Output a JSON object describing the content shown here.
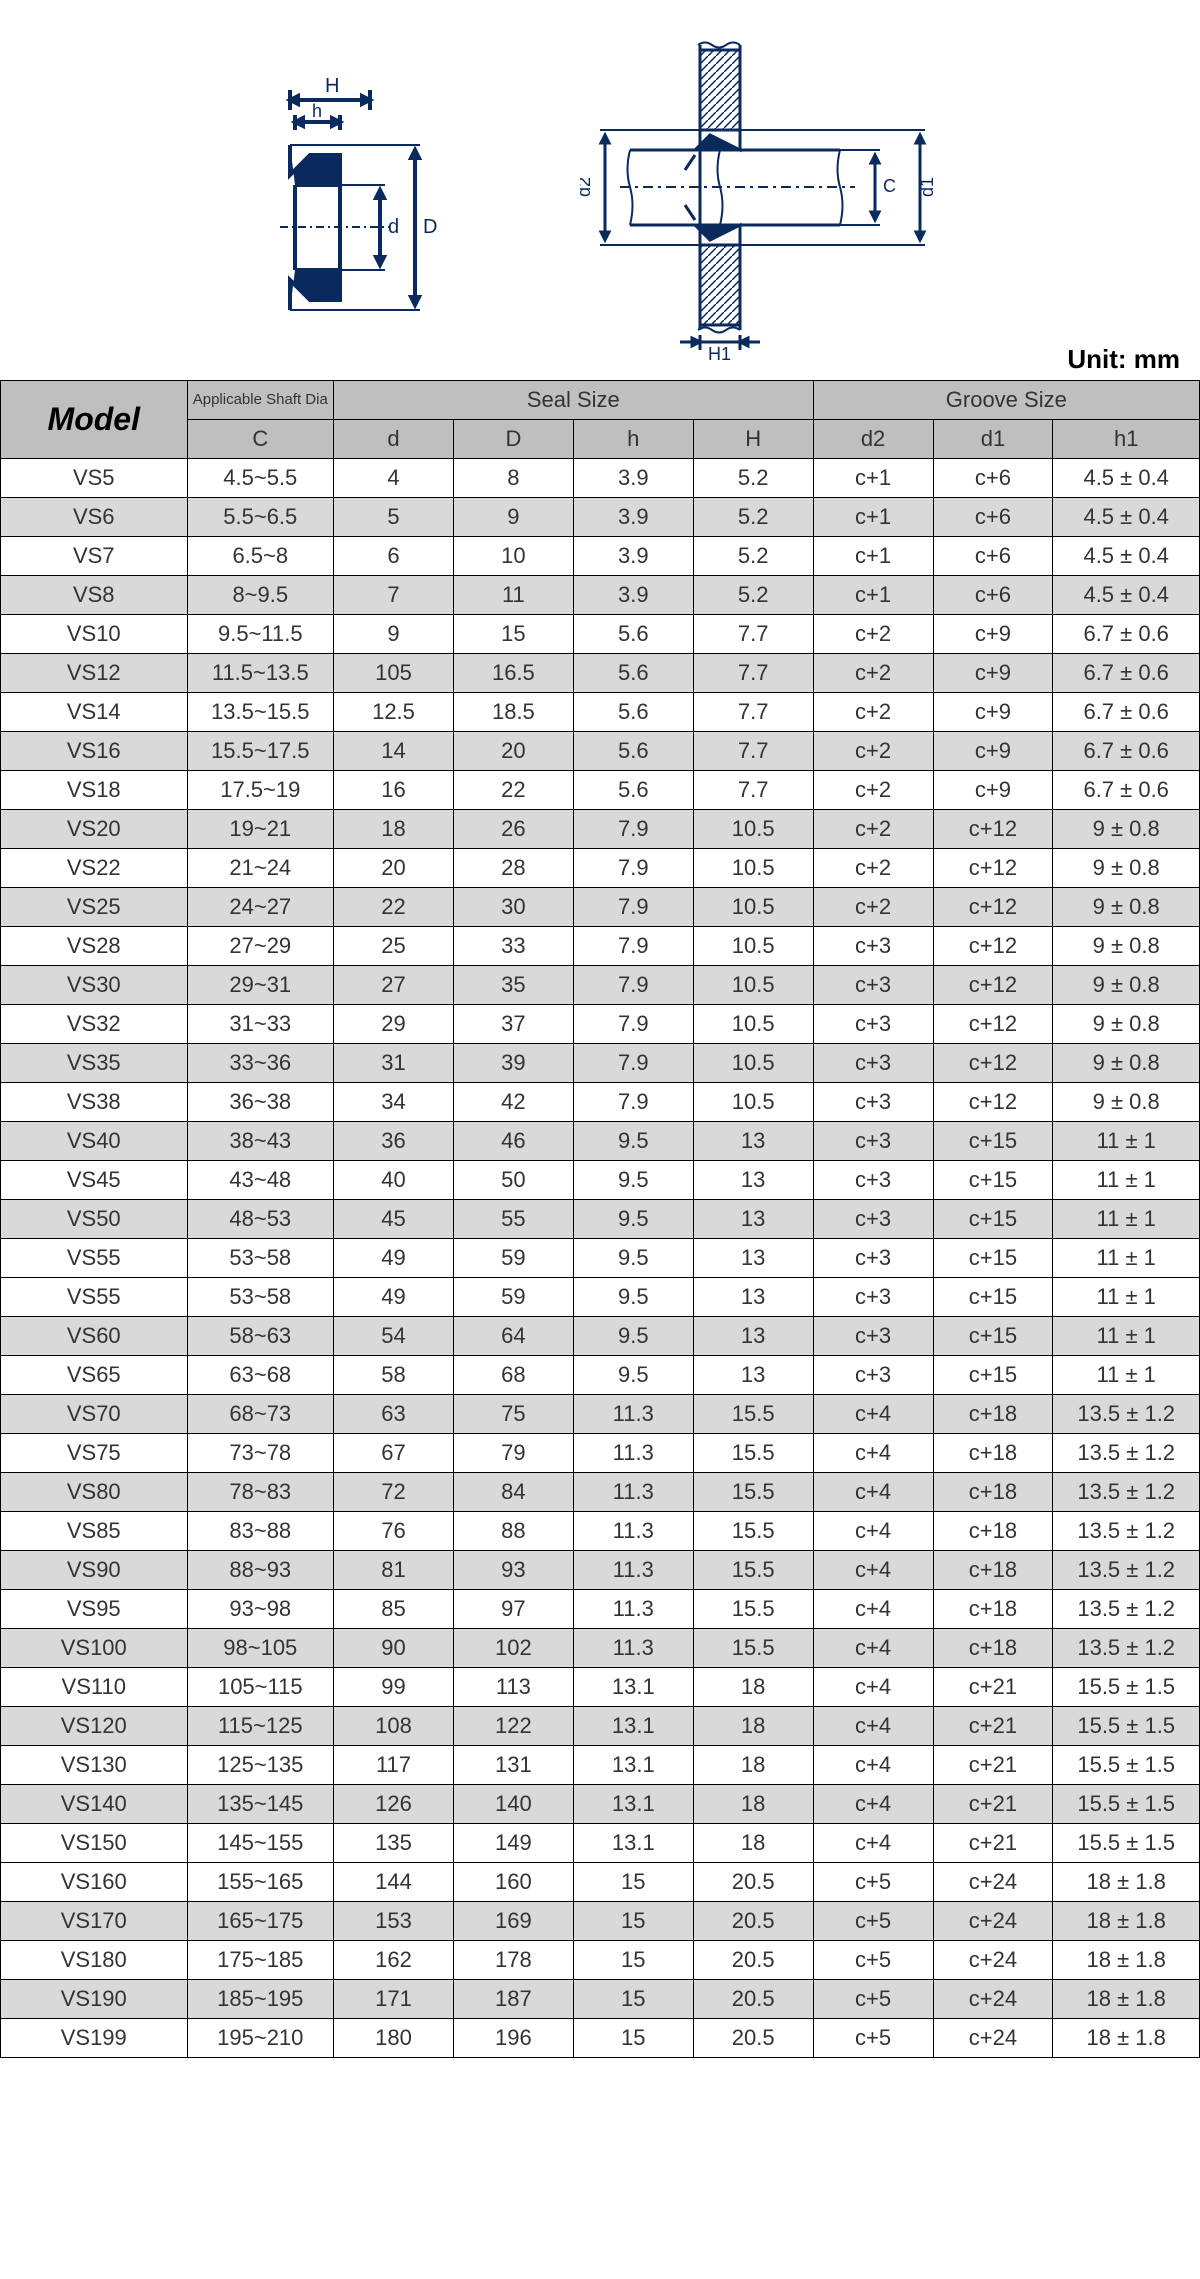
{
  "unit_label": "Unit: mm",
  "headers": {
    "model": "Model",
    "shaft_dia": "Applicable Shaft Dia",
    "seal_size": "Seal Size",
    "groove_size": "Groove Size",
    "C": "C",
    "d": "d",
    "D": "D",
    "h": "h",
    "H": "H",
    "d2": "d2",
    "d1": "d1",
    "h1": "h1"
  },
  "diagram": {
    "left_labels": {
      "H": "H",
      "h": "h",
      "d": "d",
      "D": "D"
    },
    "right_labels": {
      "d2": "d2",
      "C": "C",
      "d1": "d1",
      "H1": "H1"
    }
  },
  "colors": {
    "header_bg": "#bfbfbf",
    "shaded_bg": "#d9d9d9",
    "border": "#000000",
    "text": "#333333",
    "diagram_stroke": "#0a2a5e"
  },
  "rows": [
    {
      "model": "VS5",
      "C": "4.5~5.5",
      "d": "4",
      "D": "8",
      "h": "3.9",
      "H": "5.2",
      "d2": "c+1",
      "d1": "c+6",
      "h1": "4.5 ± 0.4",
      "shaded": false
    },
    {
      "model": "VS6",
      "C": "5.5~6.5",
      "d": "5",
      "D": "9",
      "h": "3.9",
      "H": "5.2",
      "d2": "c+1",
      "d1": "c+6",
      "h1": "4.5 ± 0.4",
      "shaded": true
    },
    {
      "model": "VS7",
      "C": "6.5~8",
      "d": "6",
      "D": "10",
      "h": "3.9",
      "H": "5.2",
      "d2": "c+1",
      "d1": "c+6",
      "h1": "4.5 ± 0.4",
      "shaded": false
    },
    {
      "model": "VS8",
      "C": "8~9.5",
      "d": "7",
      "D": "11",
      "h": "3.9",
      "H": "5.2",
      "d2": "c+1",
      "d1": "c+6",
      "h1": "4.5 ± 0.4",
      "shaded": true
    },
    {
      "model": "VS10",
      "C": "9.5~11.5",
      "d": "9",
      "D": "15",
      "h": "5.6",
      "H": "7.7",
      "d2": "c+2",
      "d1": "c+9",
      "h1": "6.7 ± 0.6",
      "shaded": false
    },
    {
      "model": "VS12",
      "C": "11.5~13.5",
      "d": "105",
      "D": "16.5",
      "h": "5.6",
      "H": "7.7",
      "d2": "c+2",
      "d1": "c+9",
      "h1": "6.7 ± 0.6",
      "shaded": true
    },
    {
      "model": "VS14",
      "C": "13.5~15.5",
      "d": "12.5",
      "D": "18.5",
      "h": "5.6",
      "H": "7.7",
      "d2": "c+2",
      "d1": "c+9",
      "h1": "6.7 ± 0.6",
      "shaded": false
    },
    {
      "model": "VS16",
      "C": "15.5~17.5",
      "d": "14",
      "D": "20",
      "h": "5.6",
      "H": "7.7",
      "d2": "c+2",
      "d1": "c+9",
      "h1": "6.7 ± 0.6",
      "shaded": true
    },
    {
      "model": "VS18",
      "C": "17.5~19",
      "d": "16",
      "D": "22",
      "h": "5.6",
      "H": "7.7",
      "d2": "c+2",
      "d1": "c+9",
      "h1": "6.7 ± 0.6",
      "shaded": false
    },
    {
      "model": "VS20",
      "C": "19~21",
      "d": "18",
      "D": "26",
      "h": "7.9",
      "H": "10.5",
      "d2": "c+2",
      "d1": "c+12",
      "h1": "9 ± 0.8",
      "shaded": true
    },
    {
      "model": "VS22",
      "C": "21~24",
      "d": "20",
      "D": "28",
      "h": "7.9",
      "H": "10.5",
      "d2": "c+2",
      "d1": "c+12",
      "h1": "9 ± 0.8",
      "shaded": false
    },
    {
      "model": "VS25",
      "C": "24~27",
      "d": "22",
      "D": "30",
      "h": "7.9",
      "H": "10.5",
      "d2": "c+2",
      "d1": "c+12",
      "h1": "9 ± 0.8",
      "shaded": true
    },
    {
      "model": "VS28",
      "C": "27~29",
      "d": "25",
      "D": "33",
      "h": "7.9",
      "H": "10.5",
      "d2": "c+3",
      "d1": "c+12",
      "h1": "9 ± 0.8",
      "shaded": false
    },
    {
      "model": "VS30",
      "C": "29~31",
      "d": "27",
      "D": "35",
      "h": "7.9",
      "H": "10.5",
      "d2": "c+3",
      "d1": "c+12",
      "h1": "9 ± 0.8",
      "shaded": true
    },
    {
      "model": "VS32",
      "C": "31~33",
      "d": "29",
      "D": "37",
      "h": "7.9",
      "H": "10.5",
      "d2": "c+3",
      "d1": "c+12",
      "h1": "9 ± 0.8",
      "shaded": false
    },
    {
      "model": "VS35",
      "C": "33~36",
      "d": "31",
      "D": "39",
      "h": "7.9",
      "H": "10.5",
      "d2": "c+3",
      "d1": "c+12",
      "h1": "9 ± 0.8",
      "shaded": true
    },
    {
      "model": "VS38",
      "C": "36~38",
      "d": "34",
      "D": "42",
      "h": "7.9",
      "H": "10.5",
      "d2": "c+3",
      "d1": "c+12",
      "h1": "9 ± 0.8",
      "shaded": false
    },
    {
      "model": "VS40",
      "C": "38~43",
      "d": "36",
      "D": "46",
      "h": "9.5",
      "H": "13",
      "d2": "c+3",
      "d1": "c+15",
      "h1": "11 ± 1",
      "shaded": true
    },
    {
      "model": "VS45",
      "C": "43~48",
      "d": "40",
      "D": "50",
      "h": "9.5",
      "H": "13",
      "d2": "c+3",
      "d1": "c+15",
      "h1": "11 ± 1",
      "shaded": false
    },
    {
      "model": "VS50",
      "C": "48~53",
      "d": "45",
      "D": "55",
      "h": "9.5",
      "H": "13",
      "d2": "c+3",
      "d1": "c+15",
      "h1": "11 ± 1",
      "shaded": true
    },
    {
      "model": "VS55",
      "C": "53~58",
      "d": "49",
      "D": "59",
      "h": "9.5",
      "H": "13",
      "d2": "c+3",
      "d1": "c+15",
      "h1": "11 ± 1",
      "shaded": false
    },
    {
      "model": "VS55",
      "C": "53~58",
      "d": "49",
      "D": "59",
      "h": "9.5",
      "H": "13",
      "d2": "c+3",
      "d1": "c+15",
      "h1": "11 ± 1",
      "shaded": false
    },
    {
      "model": "VS60",
      "C": "58~63",
      "d": "54",
      "D": "64",
      "h": "9.5",
      "H": "13",
      "d2": "c+3",
      "d1": "c+15",
      "h1": "11 ± 1",
      "shaded": true
    },
    {
      "model": "VS65",
      "C": "63~68",
      "d": "58",
      "D": "68",
      "h": "9.5",
      "H": "13",
      "d2": "c+3",
      "d1": "c+15",
      "h1": "11 ± 1",
      "shaded": false
    },
    {
      "model": "VS70",
      "C": "68~73",
      "d": "63",
      "D": "75",
      "h": "11.3",
      "H": "15.5",
      "d2": "c+4",
      "d1": "c+18",
      "h1": "13.5 ± 1.2",
      "shaded": true
    },
    {
      "model": "VS75",
      "C": "73~78",
      "d": "67",
      "D": "79",
      "h": "11.3",
      "H": "15.5",
      "d2": "c+4",
      "d1": "c+18",
      "h1": "13.5 ± 1.2",
      "shaded": false
    },
    {
      "model": "VS80",
      "C": "78~83",
      "d": "72",
      "D": "84",
      "h": "11.3",
      "H": "15.5",
      "d2": "c+4",
      "d1": "c+18",
      "h1": "13.5 ± 1.2",
      "shaded": true
    },
    {
      "model": "VS85",
      "C": "83~88",
      "d": "76",
      "D": "88",
      "h": "11.3",
      "H": "15.5",
      "d2": "c+4",
      "d1": "c+18",
      "h1": "13.5 ± 1.2",
      "shaded": false
    },
    {
      "model": "VS90",
      "C": "88~93",
      "d": "81",
      "D": "93",
      "h": "11.3",
      "H": "15.5",
      "d2": "c+4",
      "d1": "c+18",
      "h1": "13.5 ± 1.2",
      "shaded": true
    },
    {
      "model": "VS95",
      "C": "93~98",
      "d": "85",
      "D": "97",
      "h": "11.3",
      "H": "15.5",
      "d2": "c+4",
      "d1": "c+18",
      "h1": "13.5 ± 1.2",
      "shaded": false
    },
    {
      "model": "VS100",
      "C": "98~105",
      "d": "90",
      "D": "102",
      "h": "11.3",
      "H": "15.5",
      "d2": "c+4",
      "d1": "c+18",
      "h1": "13.5 ± 1.2",
      "shaded": true
    },
    {
      "model": "VS110",
      "C": "105~115",
      "d": "99",
      "D": "113",
      "h": "13.1",
      "H": "18",
      "d2": "c+4",
      "d1": "c+21",
      "h1": "15.5 ± 1.5",
      "shaded": false
    },
    {
      "model": "VS120",
      "C": "115~125",
      "d": "108",
      "D": "122",
      "h": "13.1",
      "H": "18",
      "d2": "c+4",
      "d1": "c+21",
      "h1": "15.5 ± 1.5",
      "shaded": true
    },
    {
      "model": "VS130",
      "C": "125~135",
      "d": "117",
      "D": "131",
      "h": "13.1",
      "H": "18",
      "d2": "c+4",
      "d1": "c+21",
      "h1": "15.5 ± 1.5",
      "shaded": false
    },
    {
      "model": "VS140",
      "C": "135~145",
      "d": "126",
      "D": "140",
      "h": "13.1",
      "H": "18",
      "d2": "c+4",
      "d1": "c+21",
      "h1": "15.5 ± 1.5",
      "shaded": true
    },
    {
      "model": "VS150",
      "C": "145~155",
      "d": "135",
      "D": "149",
      "h": "13.1",
      "H": "18",
      "d2": "c+4",
      "d1": "c+21",
      "h1": "15.5 ± 1.5",
      "shaded": false
    },
    {
      "model": "VS160",
      "C": "155~165",
      "d": "144",
      "D": "160",
      "h": "15",
      "H": "20.5",
      "d2": "c+5",
      "d1": "c+24",
      "h1": "18 ± 1.8",
      "shaded": false
    },
    {
      "model": "VS170",
      "C": "165~175",
      "d": "153",
      "D": "169",
      "h": "15",
      "H": "20.5",
      "d2": "c+5",
      "d1": "c+24",
      "h1": "18 ± 1.8",
      "shaded": true
    },
    {
      "model": "VS180",
      "C": "175~185",
      "d": "162",
      "D": "178",
      "h": "15",
      "H": "20.5",
      "d2": "c+5",
      "d1": "c+24",
      "h1": "18 ± 1.8",
      "shaded": false
    },
    {
      "model": "VS190",
      "C": "185~195",
      "d": "171",
      "D": "187",
      "h": "15",
      "H": "20.5",
      "d2": "c+5",
      "d1": "c+24",
      "h1": "18 ± 1.8",
      "shaded": true
    },
    {
      "model": "VS199",
      "C": "195~210",
      "d": "180",
      "D": "196",
      "h": "15",
      "H": "20.5",
      "d2": "c+5",
      "d1": "c+24",
      "h1": "18 ± 1.8",
      "shaded": false
    }
  ]
}
